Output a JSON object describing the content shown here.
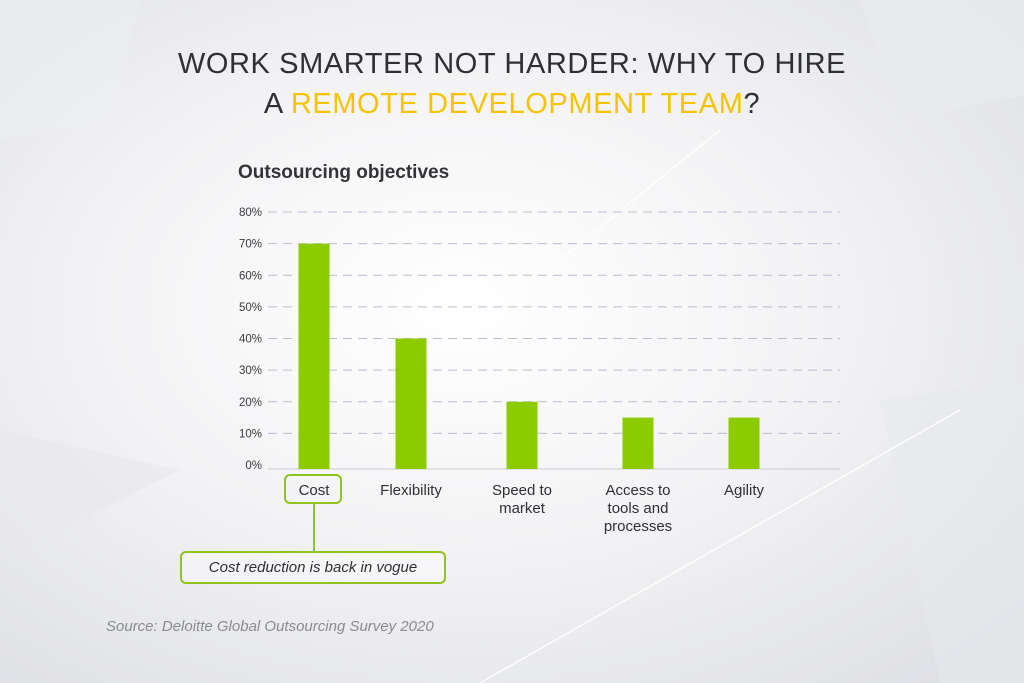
{
  "headline": {
    "line1": "WORK SMARTER NOT HARDER: WHY TO HIRE",
    "line2_prefix": "A ",
    "line2_accent": "REMOTE DEVELOPMENT TEAM",
    "line2_suffix": "?"
  },
  "colors": {
    "accent": "#f4c400",
    "bar": "#8ccb00",
    "callout_border": "#8fc31f",
    "text": "#2f3033",
    "source_text": "#8a8b90"
  },
  "chart_data": {
    "type": "bar",
    "title": "Outsourcing objectives",
    "categories": [
      [
        "Cost"
      ],
      [
        "Flexibility"
      ],
      [
        "Speed to",
        "market"
      ],
      [
        "Access to",
        "tools and",
        "processes"
      ],
      [
        "Agility"
      ]
    ],
    "values": [
      70,
      40,
      20,
      15,
      15
    ],
    "ylim": [
      0,
      80
    ],
    "yticks": [
      "0%",
      "10%",
      "20%",
      "30%",
      "40%",
      "50%",
      "60%",
      "70%",
      "80%"
    ],
    "grid": "dashed horizontal",
    "xlabel": "",
    "ylabel": ""
  },
  "callout": {
    "text": "Cost reduction is back in vogue",
    "target_category": "Cost"
  },
  "source": "Source: Deloitte Global Outsourcing Survey 2020"
}
